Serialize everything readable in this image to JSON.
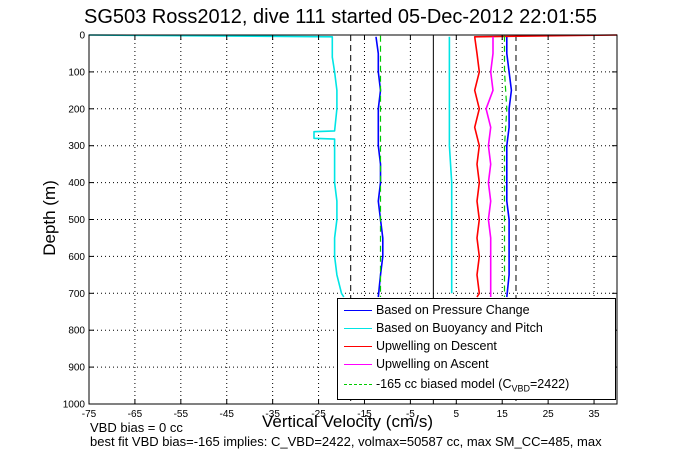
{
  "title": "SG503 Ross2012, dive 111 started 05-Dec-2012 22:01:55",
  "footer": {
    "line1": "VBD bias = 0 cc",
    "line2": "best fit VBD bias=-165 implies: C_VBD=2422, volmax=50587 cc, max SM_CC=485, max"
  },
  "chart_data": {
    "type": "line",
    "title": "SG503 Ross2012, dive 111 started 05-Dec-2012 22:01:55",
    "xlabel": "Vertical Velocity (cm/s)",
    "ylabel": "Depth (m)",
    "xlim": [
      -75,
      40
    ],
    "ylim": [
      0,
      1000
    ],
    "y_reversed": true,
    "grid": true,
    "grid_style": "dotted",
    "x_ticks": [
      -75,
      -65,
      -55,
      -45,
      -35,
      -25,
      -15,
      -5,
      5,
      15,
      25,
      35
    ],
    "y_ticks": [
      0,
      100,
      200,
      300,
      400,
      500,
      600,
      700,
      800,
      900,
      1000
    ],
    "legend_position": "bottom-right",
    "series": [
      {
        "name": "Based on Pressure Change",
        "color": "#0000ff",
        "style": "solid",
        "segments": [
          {
            "depth": [
              5,
              50,
              100,
              150,
              200,
              250,
              300,
              350,
              400,
              450,
              500,
              550,
              600,
              650,
              710
            ],
            "velocity": [
              -12.5,
              -12,
              -12,
              -11.5,
              -12,
              -12,
              -12,
              -11.5,
              -11.5,
              -12,
              -11.5,
              -11,
              -11,
              -11.5,
              -12
            ]
          },
          {
            "depth": [
              5,
              50,
              100,
              150,
              200,
              250,
              300,
              350,
              400,
              450,
              500,
              550,
              600,
              650,
              710
            ],
            "velocity": [
              16,
              16,
              16.5,
              17,
              16.5,
              16.5,
              16,
              16,
              16,
              16,
              16.5,
              16.5,
              16.5,
              16.5,
              16
            ]
          }
        ]
      },
      {
        "name": "Based on Buoyancy and Pitch",
        "color": "#00e5e5",
        "style": "solid",
        "segments": [
          {
            "depth": [
              0,
              5,
              20,
              60,
              100,
              150,
              200,
              260,
              262,
              280,
              282,
              300,
              350,
              400,
              450,
              500,
              550,
              600,
              650,
              700,
              710
            ],
            "velocity": [
              -75,
              -22,
              -22,
              -22,
              -21.5,
              -21,
              -21,
              -21.5,
              -26,
              -26,
              -21.5,
              -21.5,
              -21.5,
              -21.5,
              -21,
              -21,
              -21.5,
              -21.5,
              -21,
              -20,
              -19.5
            ]
          },
          {
            "depth": [
              5,
              100,
              200,
              300,
              400,
              500,
              600,
              700
            ],
            "velocity": [
              3.5,
              3.5,
              3.5,
              3.5,
              4,
              4,
              4,
              4
            ]
          }
        ]
      },
      {
        "name": "Upwelling on Descent",
        "color": "#ff0000",
        "style": "solid",
        "segments": [
          {
            "depth": [
              0,
              5,
              50,
              100,
              150,
              200,
              250,
              300,
              350,
              400,
              450,
              500,
              550,
              600,
              650,
              700,
              710
            ],
            "velocity": [
              40,
              9,
              9.5,
              10,
              9,
              10,
              9,
              10,
              9.5,
              10,
              9.5,
              10,
              9.5,
              10,
              9.5,
              10,
              9.5
            ]
          }
        ]
      },
      {
        "name": "Upwelling on Ascent",
        "color": "#ff00ff",
        "style": "solid",
        "segments": [
          {
            "depth": [
              5,
              50,
              100,
              150,
              200,
              250,
              300,
              350,
              400,
              450,
              500,
              550,
              600,
              650,
              700,
              710
            ],
            "velocity": [
              13,
              13,
              12.5,
              13,
              11.5,
              12.5,
              12,
              12.5,
              12,
              12.5,
              12,
              12.5,
              12.5,
              12.5,
              12.5,
              12.5
            ]
          }
        ]
      },
      {
        "name": "-165 cc biased model (C_VBD=2422)",
        "color": "#00cc00",
        "style": "dashed",
        "segments": [
          {
            "depth": [
              2,
              100,
              200,
              300,
              400,
              500,
              600,
              700,
              710
            ],
            "velocity": [
              -11.5,
              -11.5,
              -11.5,
              -11.5,
              -11.5,
              -11.5,
              -11.5,
              -11.5,
              -11.5
            ]
          },
          {
            "depth": [
              2,
              100,
              200,
              300,
              400,
              500,
              600,
              700,
              710
            ],
            "velocity": [
              15.5,
              15.5,
              16,
              15.5,
              15.5,
              15.5,
              15.5,
              15.5,
              15.5
            ]
          }
        ]
      }
    ],
    "reference_lines": [
      {
        "x": -18,
        "style": "dashed",
        "color": "#000000"
      },
      {
        "x": 0,
        "style": "solid",
        "color": "#000000"
      },
      {
        "x": 18,
        "style": "dashed",
        "color": "#000000"
      }
    ]
  },
  "legend": {
    "entries": [
      {
        "label": "Based on Pressure Change",
        "color": "#0000ff",
        "style": "solid"
      },
      {
        "label": "Based on Buoyancy and Pitch",
        "color": "#00e5e5",
        "style": "solid"
      },
      {
        "label": "Upwelling on Descent",
        "color": "#ff0000",
        "style": "solid"
      },
      {
        "label": "Upwelling on Ascent",
        "color": "#ff00ff",
        "style": "solid"
      },
      {
        "label": "-165 cc biased model (C",
        "sub": "VBD",
        "suffix": "=2422)",
        "color": "#00cc00",
        "style": "dashed"
      }
    ]
  }
}
